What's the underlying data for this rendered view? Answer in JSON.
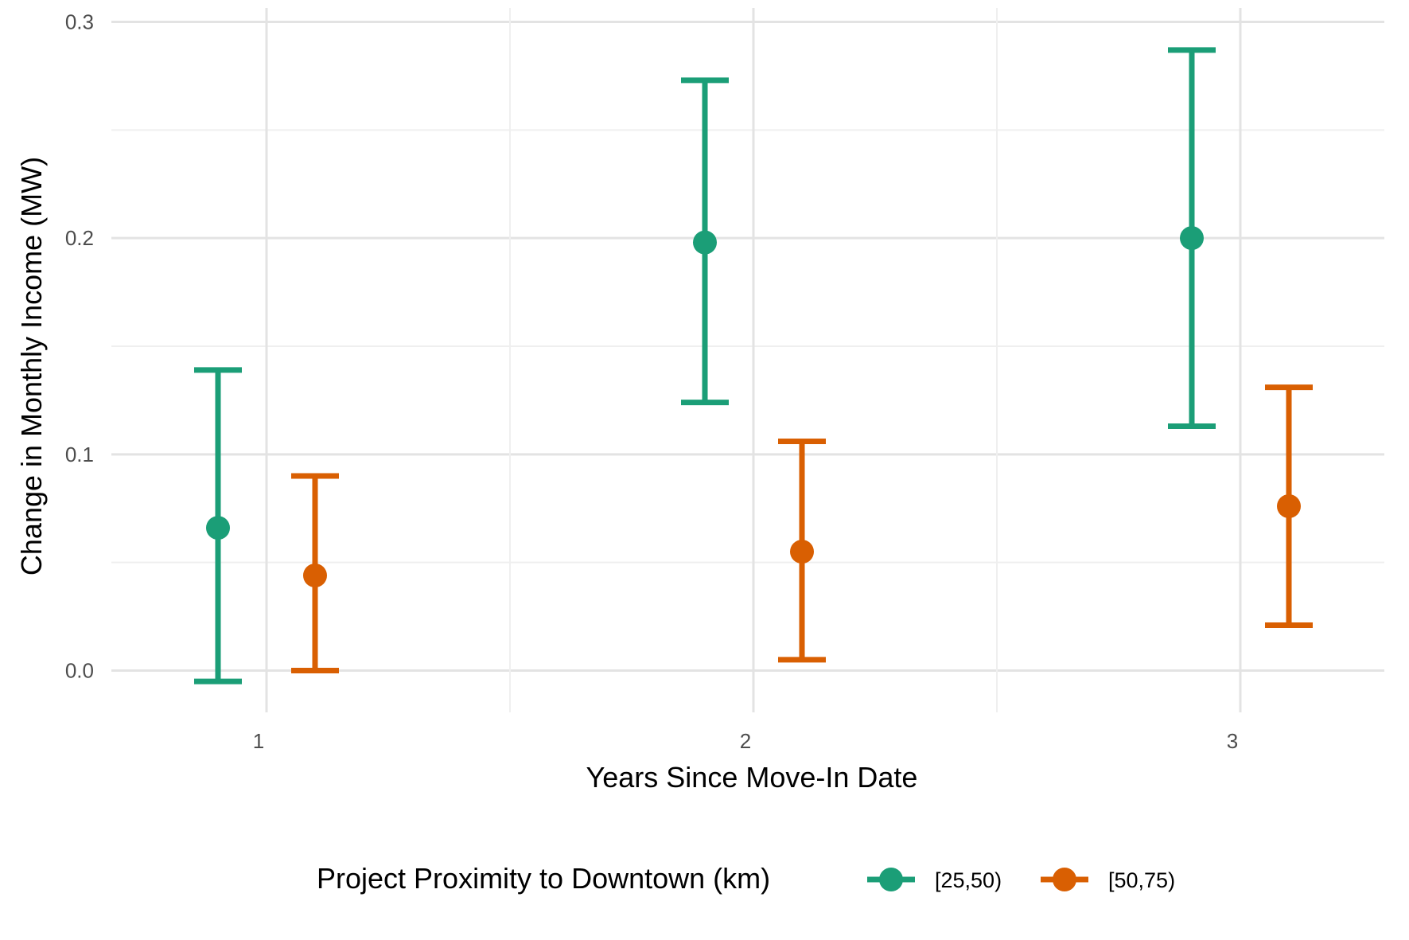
{
  "chart_data": {
    "type": "scatter",
    "title": "",
    "xlabel": "Years Since Move-In Date",
    "ylabel": "Change in Monthly Income (MW)",
    "x_categories": [
      "1",
      "2",
      "3"
    ],
    "y_ticks": [
      "0.0",
      "0.1",
      "0.2",
      "0.3"
    ],
    "ylim": [
      -0.018,
      0.3
    ],
    "grid": true,
    "legend": {
      "title": "Project Proximity to Downtown (km)",
      "placement": "bottom"
    },
    "series": [
      {
        "name": "[25,50)",
        "color": "#1b9e77",
        "points": [
          {
            "x": 1,
            "y": 0.066,
            "ymin": -0.005,
            "ymax": 0.139
          },
          {
            "x": 2,
            "y": 0.198,
            "ymin": 0.124,
            "ymax": 0.273
          },
          {
            "x": 3,
            "y": 0.2,
            "ymin": 0.113,
            "ymax": 0.287
          }
        ]
      },
      {
        "name": "[50,75)",
        "color": "#d95f02",
        "points": [
          {
            "x": 1,
            "y": 0.044,
            "ymin": 0.0,
            "ymax": 0.09
          },
          {
            "x": 2,
            "y": 0.055,
            "ymin": 0.005,
            "ymax": 0.106
          },
          {
            "x": 3,
            "y": 0.076,
            "ymin": 0.021,
            "ymax": 0.131
          }
        ]
      }
    ]
  }
}
